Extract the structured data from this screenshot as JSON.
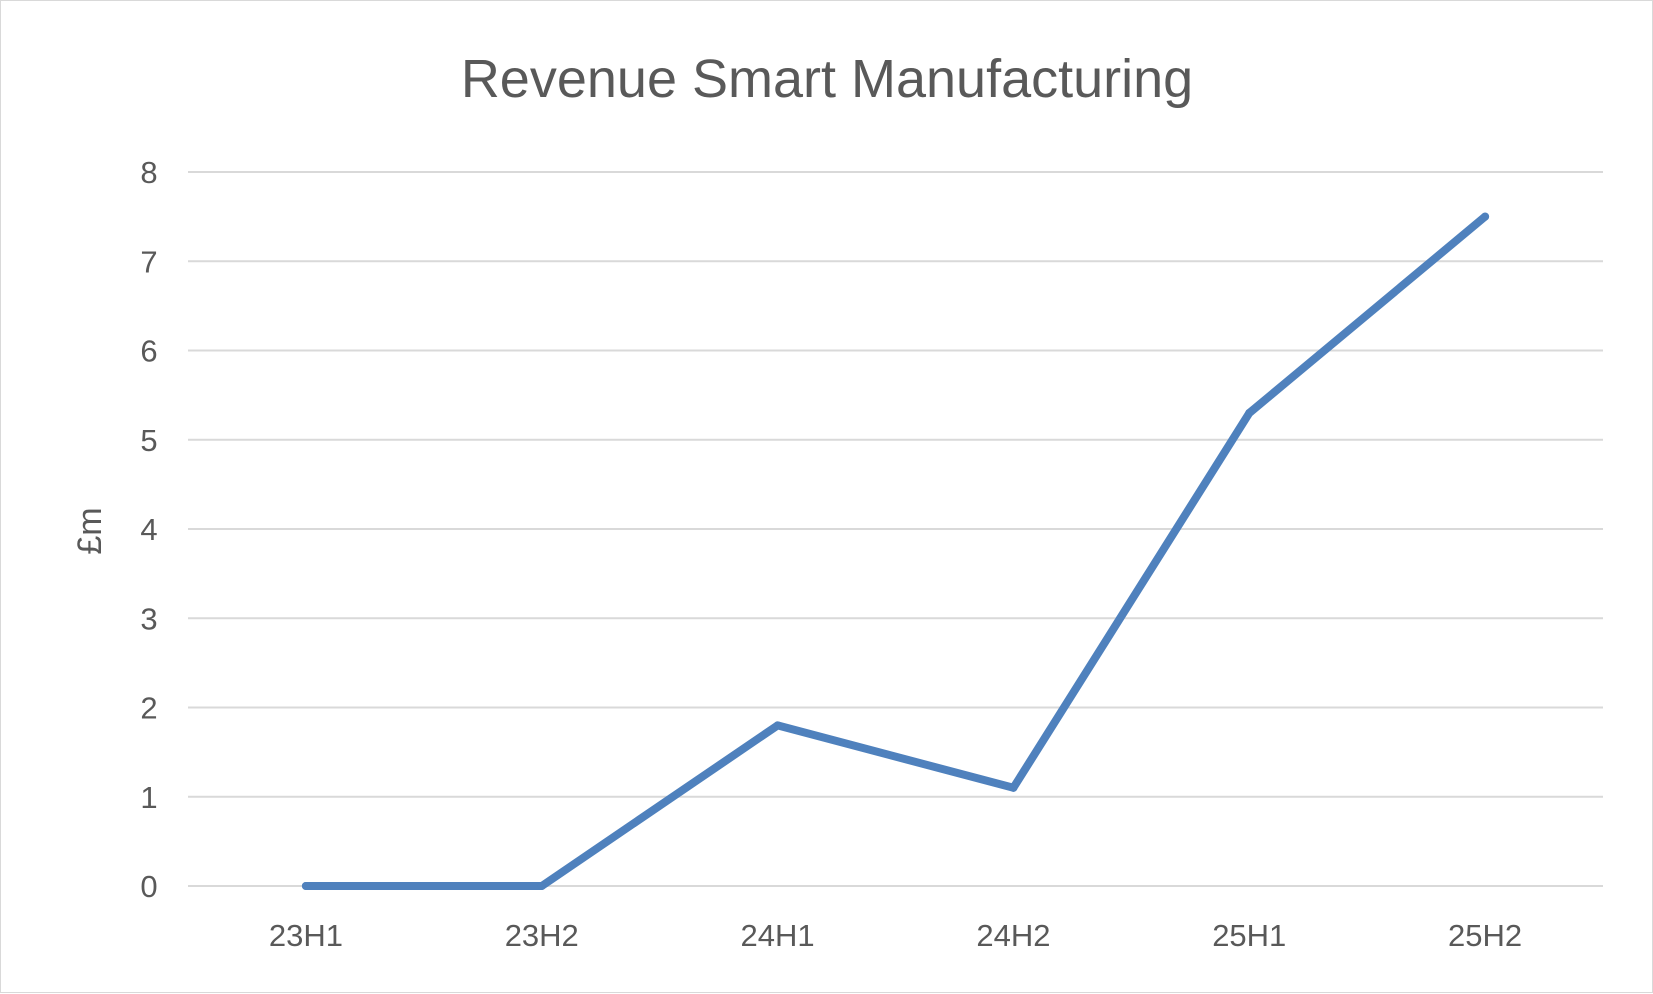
{
  "chart_data": {
    "type": "line",
    "title": "Revenue Smart Manufacturing",
    "xlabel": "",
    "ylabel": "£m",
    "categories": [
      "23H1",
      "23H2",
      "24H1",
      "24H2",
      "25H1",
      "25H2"
    ],
    "series": [
      {
        "name": "Revenue",
        "values": [
          0,
          0,
          1.8,
          1.1,
          5.3,
          7.5
        ],
        "color": "#4f81bd"
      }
    ],
    "ylim": [
      0,
      8
    ],
    "yticks": [
      "0",
      "1",
      "2",
      "3",
      "4",
      "5",
      "6",
      "7",
      "8"
    ],
    "grid": true,
    "legend": "none"
  },
  "colors": {
    "gridline": "#d9d9d9",
    "text": "#595959",
    "line": "#4f81bd"
  }
}
